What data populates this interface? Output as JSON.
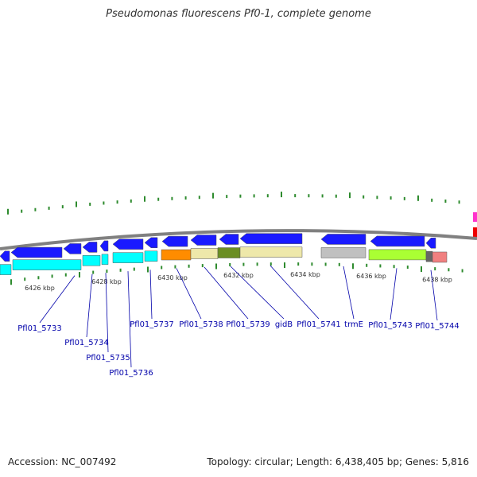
{
  "title": "Pseudomonas fluorescens Pf0-1, complete genome",
  "footer": {
    "accession": "Accession: NC_007492",
    "topology": "Topology: circular; Length: 6,438,405 bp; Genes: 5,816"
  },
  "colors": {
    "backbone": "#808080",
    "forward_gene": "#1a1aff",
    "cyan_gene": "#00ffff",
    "orange_gene": "#ff8c00",
    "khaki_gene": "#eee8aa",
    "olive_gene": "#6b8e23",
    "gray_gene": "#c0c0c0",
    "lime_gene": "#aaff33",
    "pink_gene": "#f08080",
    "tick": "#2e8b2e",
    "label": "#0000aa"
  },
  "axis_labels": [
    "6426 kbp",
    "6428 kbp",
    "6430 kbp",
    "6432 kbp",
    "6434 kbp",
    "6436 kbp",
    "6438 kbp"
  ],
  "gene_labels": [
    "Pfl01_5733",
    "Pfl01_5734",
    "Pfl01_5735",
    "Pfl01_5736",
    "Pfl01_5737",
    "Pfl01_5738",
    "Pfl01_5739",
    "gidB",
    "Pfl01_5741",
    "trmE",
    "Pfl01_5743",
    "Pfl01_5744"
  ]
}
